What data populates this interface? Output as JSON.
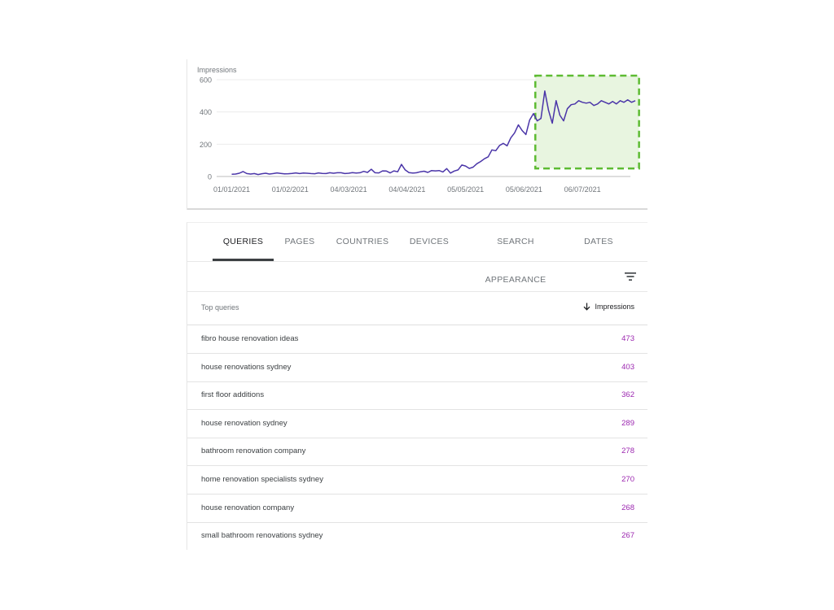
{
  "chart_data": {
    "type": "line",
    "ylabel": "Impressions",
    "ylim": [
      0,
      600
    ],
    "yticks": [
      "0",
      "200",
      "400",
      "600"
    ],
    "xtick_labels": [
      "01/01/2021",
      "01/02/2021",
      "04/03/2021",
      "04/04/2021",
      "05/05/2021",
      "05/06/2021",
      "06/07/2021"
    ],
    "xtick_days": [
      0,
      31,
      62,
      93,
      124,
      155,
      186
    ],
    "xlim": [
      -8,
      214
    ],
    "grid": true,
    "series_color": "#4a35a8",
    "highlight": {
      "x_range": [
        161,
        216
      ],
      "y_range": [
        50,
        625
      ],
      "fill": "#e8f5e0",
      "stroke": "#5dbb32"
    },
    "series": [
      {
        "x": [
          0,
          2,
          4,
          6,
          8,
          10,
          12,
          14,
          16,
          18,
          20,
          22,
          24,
          26,
          28,
          30,
          32,
          34,
          36,
          38,
          40,
          42,
          44,
          46,
          48,
          50,
          52,
          54,
          56,
          58,
          60,
          62,
          64,
          66,
          68,
          70,
          72,
          74,
          76,
          78,
          80,
          82,
          84,
          86,
          88,
          90,
          92,
          94,
          96,
          98,
          100,
          102,
          104,
          106,
          108,
          110,
          112,
          114,
          116,
          118,
          120,
          122,
          124,
          126,
          128,
          130,
          132,
          134,
          136,
          138,
          140,
          142,
          144,
          146,
          148,
          150,
          152,
          154,
          156,
          158,
          160,
          162,
          164,
          166,
          168,
          170,
          172,
          174,
          176,
          178,
          180,
          182,
          184,
          186,
          188,
          190,
          192,
          194,
          196,
          198,
          200,
          202,
          204,
          206,
          208,
          210,
          212,
          214
        ],
        "values": [
          14,
          15,
          20,
          31,
          18,
          15,
          18,
          12,
          17,
          20,
          15,
          18,
          22,
          19,
          16,
          17,
          19,
          22,
          18,
          21,
          20,
          18,
          17,
          22,
          19,
          18,
          23,
          20,
          23,
          23,
          18,
          20,
          24,
          21,
          23,
          32,
          25,
          45,
          23,
          22,
          35,
          34,
          22,
          35,
          29,
          75,
          41,
          24,
          21,
          23,
          29,
          33,
          25,
          37,
          35,
          37,
          28,
          49,
          21,
          34,
          41,
          71,
          65,
          50,
          58,
          79,
          93,
          110,
          122,
          165,
          160,
          192,
          205,
          190,
          240,
          270,
          320,
          285,
          260,
          350,
          390,
          345,
          360,
          530,
          410,
          330,
          470,
          380,
          345,
          420,
          445,
          450,
          470,
          460,
          455,
          460,
          440,
          450,
          470,
          460,
          450,
          465,
          450,
          470,
          460,
          475,
          460,
          470
        ]
      }
    ]
  },
  "tabs": {
    "queries": "QUERIES",
    "pages": "PAGES",
    "countries": "COUNTRIES",
    "devices": "DEVICES",
    "search_appearance": "SEARCH APPEARANCE",
    "dates": "DATES"
  },
  "table": {
    "col_query": "Top queries",
    "col_impressions": "Impressions",
    "rows": [
      {
        "query": "fibro house renovation ideas",
        "impressions": "473"
      },
      {
        "query": "house renovations sydney",
        "impressions": "403"
      },
      {
        "query": "first floor additions",
        "impressions": "362"
      },
      {
        "query": "house renovation sydney",
        "impressions": "289"
      },
      {
        "query": "bathroom renovation company",
        "impressions": "278"
      },
      {
        "query": "home renovation specialists sydney",
        "impressions": "270"
      },
      {
        "query": "house renovation company",
        "impressions": "268"
      },
      {
        "query": "small bathroom renovations sydney",
        "impressions": "267"
      }
    ]
  },
  "icons": {
    "filter": "filter-icon",
    "sort": "arrow-down-icon"
  },
  "colors": {
    "value_text": "#9c27b0",
    "active_tab": "#202124",
    "tab": "#70757a"
  }
}
